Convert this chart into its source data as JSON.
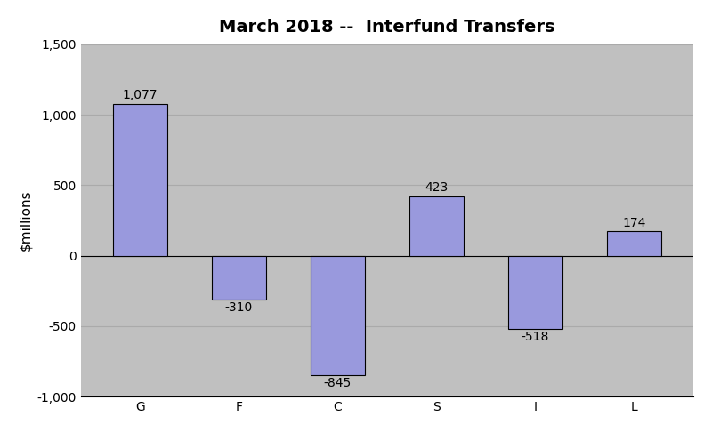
{
  "title": "March 2018 --  Interfund Transfers",
  "categories": [
    "G",
    "F",
    "C",
    "S",
    "I",
    "L"
  ],
  "values": [
    1077,
    -310,
    -845,
    423,
    -518,
    174
  ],
  "bar_color": "#9999DD",
  "bar_edgecolor": "#000000",
  "ylabel": "$millions",
  "ylim": [
    -1000,
    1500
  ],
  "yticks": [
    -1000,
    -500,
    0,
    500,
    1000,
    1500
  ],
  "ytick_labels": [
    "-1,000",
    "-500",
    "0",
    "500",
    "1,000",
    "1,500"
  ],
  "figure_bg_color": "#FFFFFF",
  "plot_bg_color": "#C0C0C0",
  "grid_color": "#AAAAAA",
  "title_fontsize": 14,
  "label_fontsize": 11,
  "tick_fontsize": 10,
  "annotation_fontsize": 10,
  "bar_width": 0.55
}
